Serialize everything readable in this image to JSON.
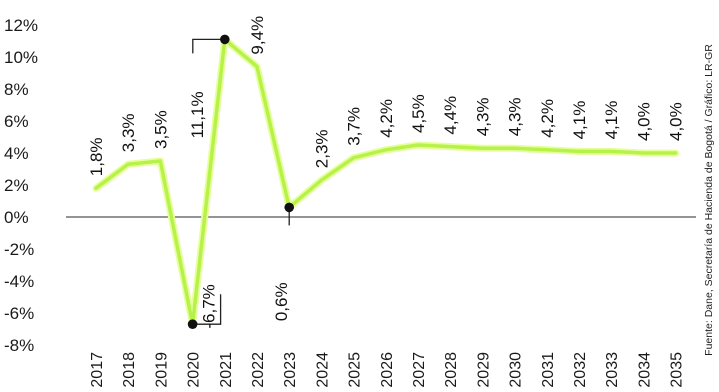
{
  "chart_data": {
    "type": "line",
    "title": "",
    "xlabel": "",
    "ylabel": "",
    "x": [
      "2017",
      "2018",
      "2019",
      "2020",
      "2021",
      "2022",
      "2023",
      "2024",
      "2025",
      "2026",
      "2027",
      "2028",
      "2029",
      "2030",
      "2031",
      "2032",
      "2033",
      "2034",
      "2035"
    ],
    "series": [
      {
        "values": [
          1.8,
          3.3,
          3.5,
          -6.7,
          11.1,
          9.4,
          0.6,
          2.3,
          3.7,
          4.2,
          4.5,
          4.4,
          4.3,
          4.3,
          4.2,
          4.1,
          4.1,
          4.0,
          4.0
        ]
      }
    ],
    "data_labels": [
      "1,8%",
      "3,3%",
      "3,5%",
      "-6,7%",
      "11,1%",
      "9,4%",
      "0,6%",
      "2,3%",
      "3,7%",
      "4,2%",
      "4,5%",
      "4,4%",
      "4,3%",
      "4,3%",
      "4,2%",
      "4,1%",
      "4,1%",
      "4,0%",
      "4,0%"
    ],
    "y_ticks": [
      12,
      10,
      8,
      6,
      4,
      2,
      0,
      -2,
      -4,
      -6,
      -8
    ],
    "y_tick_labels": [
      "12%",
      "10%",
      "8%",
      "6%",
      "4%",
      "2%",
      "0%",
      "-2%",
      "-4%",
      "-6%",
      "-8%"
    ],
    "ylim": [
      -8,
      12
    ],
    "highlighted_points": [
      3,
      4,
      6
    ],
    "line_color": "#b7f24a",
    "line_glow_color": "#e6ff9a",
    "grid": false,
    "source": "Fuente: Dane, Secretaría de Hacienda de Bogotá / Gráfico: LR-GR"
  }
}
